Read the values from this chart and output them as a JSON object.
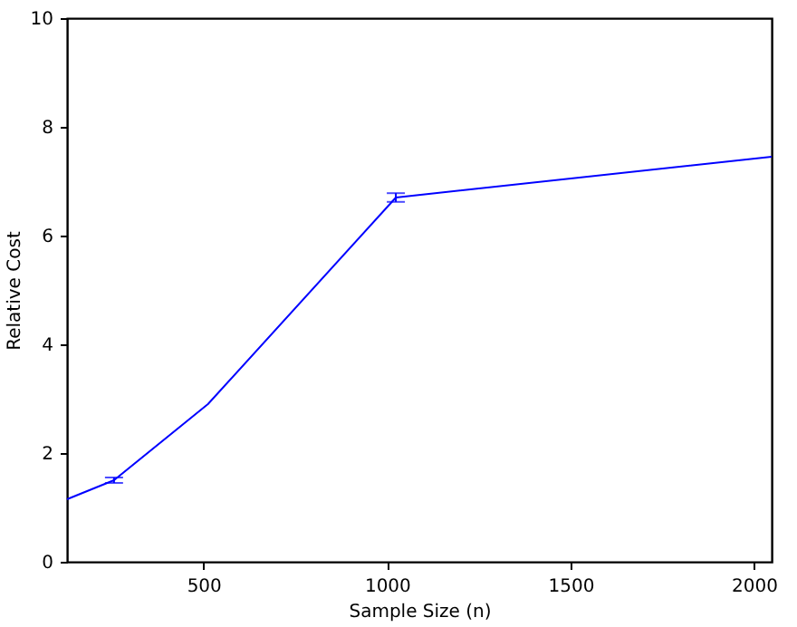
{
  "chart_data": {
    "type": "line",
    "xlabel": "Sample Size (n)",
    "ylabel": "Relative Cost",
    "x": [
      128,
      256,
      512,
      1024,
      2048
    ],
    "series": [
      {
        "color": "#0000ff",
        "values": [
          1.15,
          1.5,
          2.9,
          6.7,
          7.45
        ],
        "errors": [
          null,
          0.05,
          null,
          0.08,
          null
        ]
      }
    ],
    "xlim": [
      128,
      2048
    ],
    "xticks": [
      500,
      1000,
      1500,
      2000
    ],
    "ylim": [
      0,
      10
    ],
    "yticks": [
      0,
      2,
      4,
      6,
      8,
      10
    ],
    "grid": false,
    "marker": "none",
    "line_style": "solid"
  }
}
